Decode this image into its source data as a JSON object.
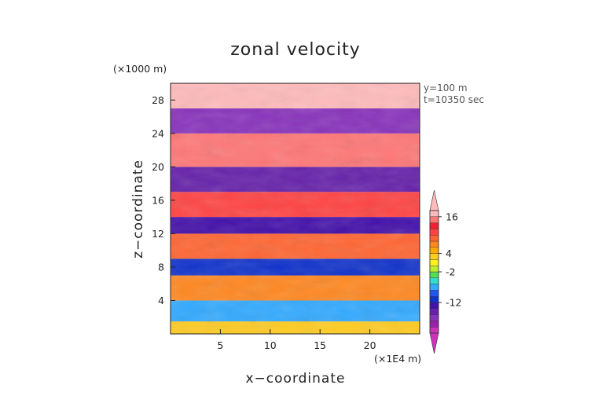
{
  "chart_data": {
    "type": "heatmap",
    "title": "zonal velocity",
    "xlabel": "x−coordinate",
    "ylabel": "z−coordinate",
    "x_unit": "(×1E4 m)",
    "y_unit": "(×1000 m)",
    "annotations": [
      "y=100 m",
      "t=10350 sec"
    ],
    "xlim": [
      0,
      25
    ],
    "ylim": [
      0,
      30
    ],
    "x_ticks": [
      5,
      10,
      15,
      20
    ],
    "y_ticks": [
      4,
      8,
      12,
      16,
      20,
      24,
      28
    ],
    "colorbar": {
      "levels": [
        -22,
        -20,
        -18,
        -16,
        -14,
        -12,
        -10,
        -8,
        -6,
        -4,
        -2,
        0,
        2,
        4,
        6,
        8,
        10,
        12,
        14,
        16,
        18
      ],
      "colors": [
        "#cc33bb",
        "#9922aa",
        "#8833bb",
        "#6622aa",
        "#4411aa",
        "#1133cc",
        "#2255ee",
        "#33aaff",
        "#33ddcc",
        "#55dd55",
        "#bbee33",
        "#ffee22",
        "#ffcc22",
        "#ffaa00",
        "#ff8822",
        "#ff6633",
        "#ff4444",
        "#ee2233",
        "#ff7777",
        "#ffbbbb"
      ],
      "labels": [
        16,
        4,
        -2,
        -12
      ],
      "extend": "both"
    },
    "bands": [
      {
        "z": [
          0,
          1.5
        ],
        "u": 2
      },
      {
        "z": [
          1.5,
          4
        ],
        "u": -8
      },
      {
        "z": [
          4,
          7
        ],
        "u": 6
      },
      {
        "z": [
          7,
          9
        ],
        "u": -12
      },
      {
        "z": [
          9,
          12
        ],
        "u": 8
      },
      {
        "z": [
          12,
          14
        ],
        "u": -14
      },
      {
        "z": [
          14,
          17
        ],
        "u": 10
      },
      {
        "z": [
          17,
          20
        ],
        "u": -16
      },
      {
        "z": [
          20,
          24
        ],
        "u": 14
      },
      {
        "z": [
          24,
          27
        ],
        "u": -18
      },
      {
        "z": [
          27,
          30
        ],
        "u": 16
      }
    ]
  }
}
